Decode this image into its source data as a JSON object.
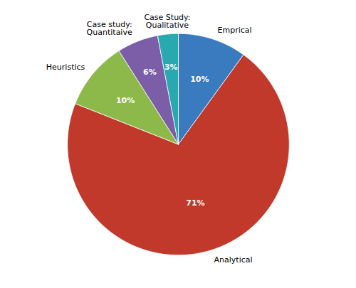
{
  "chart_data": {
    "type": "pie",
    "categories": [
      "Emprical",
      "Analytical",
      "Heuristics",
      "Case study:\nQuantitaive",
      "Case Study:\nQualitative"
    ],
    "values": [
      10,
      71,
      10,
      6,
      3
    ],
    "value_labels": [
      "10%",
      "71%",
      "10%",
      "6%",
      "3%"
    ],
    "colors": [
      "#3a7abf",
      "#c0392b",
      "#8db84a",
      "#7b5ea7",
      "#29a8b0"
    ],
    "data_labels": true
  }
}
